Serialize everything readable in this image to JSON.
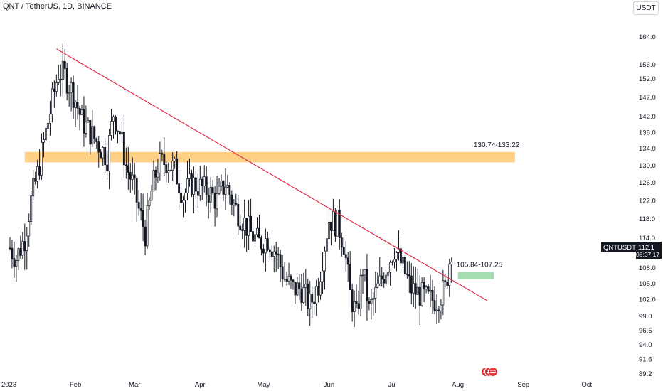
{
  "header": {
    "title": "QNT / TetherUS, 1D, BINANCE",
    "currency_button": "USDT"
  },
  "colors": {
    "candle": "#131722",
    "trendline": "#e0304a",
    "resistance_zone": "#ffcf83",
    "target_zone": "#a5deb1"
  },
  "price_tag": {
    "symbol": "QNTUSDT",
    "price": "112.1",
    "countdown": "06:07:17"
  },
  "chart_data": {
    "type": "candlestick",
    "title": "",
    "y_scale": "log",
    "ylim": [
      88.8,
      175
    ],
    "y_ticks": [
      164.0,
      156.0,
      152.0,
      147.0,
      142.0,
      138.0,
      134.0,
      130.0,
      126.0,
      122.0,
      118.0,
      114.0,
      108.0,
      105.0,
      102.0,
      99.0,
      96.5,
      94.0,
      91.6,
      89.2
    ],
    "x_tick_labels": [
      {
        "date": "2023-01-01",
        "label": "2023"
      },
      {
        "date": "2023-02-01",
        "label": "Feb"
      },
      {
        "date": "2023-03-01",
        "label": "Mar"
      },
      {
        "date": "2023-04-01",
        "label": "Apr"
      },
      {
        "date": "2023-05-01",
        "label": "May"
      },
      {
        "date": "2023-06-01",
        "label": "Jun"
      },
      {
        "date": "2023-07-01",
        "label": "Jul"
      },
      {
        "date": "2023-08-01",
        "label": "Aug"
      },
      {
        "date": "2023-09-01",
        "label": "Sep"
      },
      {
        "date": "2023-10-01",
        "label": "Oct"
      }
    ],
    "daily_close_path": [
      [
        "2023-01-01",
        112
      ],
      [
        "2023-01-04",
        110
      ],
      [
        "2023-01-08",
        114
      ],
      [
        "2023-01-11",
        122
      ],
      [
        "2023-01-14",
        128
      ],
      [
        "2023-01-18",
        138
      ],
      [
        "2023-01-21",
        146
      ],
      [
        "2023-01-24",
        154
      ],
      [
        "2023-01-27",
        153
      ],
      [
        "2023-01-31",
        148
      ],
      [
        "2023-02-04",
        141
      ],
      [
        "2023-02-08",
        138
      ],
      [
        "2023-02-12",
        135
      ],
      [
        "2023-02-16",
        132
      ],
      [
        "2023-02-19",
        143
      ],
      [
        "2023-02-22",
        138
      ],
      [
        "2023-02-25",
        130
      ],
      [
        "2023-02-28",
        126
      ],
      [
        "2023-03-03",
        120
      ],
      [
        "2023-03-06",
        115
      ],
      [
        "2023-03-09",
        124
      ],
      [
        "2023-03-12",
        130
      ],
      [
        "2023-03-16",
        131
      ],
      [
        "2023-03-20",
        129
      ],
      [
        "2023-03-24",
        123
      ],
      [
        "2023-03-28",
        126
      ],
      [
        "2023-04-01",
        125
      ],
      [
        "2023-04-05",
        124
      ],
      [
        "2023-04-09",
        122
      ],
      [
        "2023-04-13",
        126
      ],
      [
        "2023-04-17",
        121
      ],
      [
        "2023-04-21",
        118
      ],
      [
        "2023-04-25",
        115
      ],
      [
        "2023-04-29",
        113
      ],
      [
        "2023-05-03",
        114
      ],
      [
        "2023-05-07",
        111
      ],
      [
        "2023-05-11",
        106
      ],
      [
        "2023-05-15",
        104
      ],
      [
        "2023-05-19",
        104
      ],
      [
        "2023-05-23",
        101
      ],
      [
        "2023-05-27",
        105
      ],
      [
        "2023-06-01",
        118
      ],
      [
        "2023-06-05",
        117
      ],
      [
        "2023-06-08",
        113
      ],
      [
        "2023-06-11",
        103
      ],
      [
        "2023-06-14",
        99
      ],
      [
        "2023-06-17",
        108
      ],
      [
        "2023-06-20",
        100
      ],
      [
        "2023-06-24",
        104
      ],
      [
        "2023-06-28",
        108
      ],
      [
        "2023-07-02",
        112
      ],
      [
        "2023-07-06",
        108
      ],
      [
        "2023-07-10",
        104
      ],
      [
        "2023-07-14",
        103
      ],
      [
        "2023-07-18",
        102
      ],
      [
        "2023-07-22",
        102
      ],
      [
        "2023-07-26",
        104
      ],
      [
        "2023-07-29",
        112
      ]
    ],
    "annotations": [
      {
        "type": "trendline",
        "from": [
          "2023-01-23",
          160.5
        ],
        "to": [
          "2023-08-15",
          101.8
        ]
      },
      {
        "type": "zone",
        "label": "130.74-133.22",
        "low": 130.74,
        "high": 133.22,
        "from": "2023-01-08",
        "to": "2023-08-28"
      },
      {
        "type": "zone",
        "label": "105.84-107.25",
        "low": 105.84,
        "high": 107.25,
        "from": "2023-08-01",
        "to": "2023-08-18"
      }
    ]
  }
}
